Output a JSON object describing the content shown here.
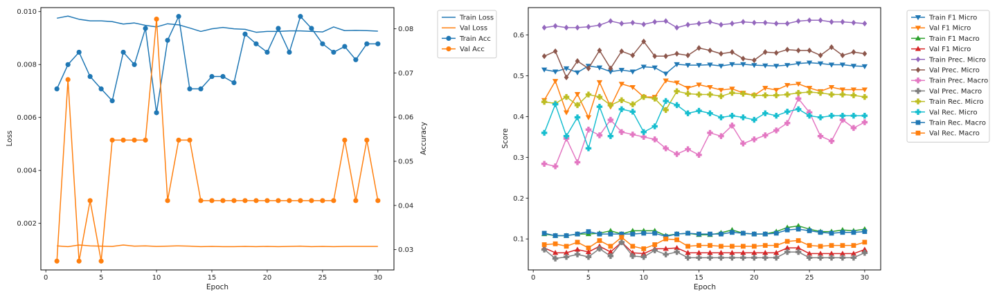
{
  "colors": {
    "c0": "#1f77b4",
    "c1": "#ff7f0e",
    "c2": "#2ca02c",
    "c3": "#d62728",
    "c4": "#9467bd",
    "c5": "#8c564b",
    "c6": "#e377c2",
    "c7": "#7f7f7f",
    "c8": "#bcbd22",
    "c9": "#17becf"
  },
  "chart_data": [
    {
      "type": "line",
      "x": [
        1,
        2,
        3,
        4,
        5,
        6,
        7,
        8,
        9,
        10,
        11,
        12,
        13,
        14,
        15,
        16,
        17,
        18,
        19,
        20,
        21,
        22,
        23,
        24,
        25,
        26,
        27,
        28,
        29,
        30
      ],
      "xlabel": "Epoch",
      "ylabel": "Loss",
      "y2label": "Accuracy",
      "xlim": [
        -0.45,
        31.45
      ],
      "ylim": [
        0.00024,
        0.01015
      ],
      "y2lim": [
        0.0254,
        0.0848
      ],
      "xticks": [
        "0",
        "5",
        "10",
        "15",
        "20",
        "25",
        "30"
      ],
      "yticks": [
        "0.002",
        "0.004",
        "0.006",
        "0.008",
        "0.010"
      ],
      "y2ticks": [
        "0.03",
        "0.04",
        "0.05",
        "0.06",
        "0.07",
        "0.08"
      ],
      "legend_position": "outside-top-right",
      "series": [
        {
          "name": "Train Loss",
          "axis": "left",
          "color": "#1f77b4",
          "marker": "none",
          "values": [
            0.00975,
            0.00983,
            0.00971,
            0.00965,
            0.00965,
            0.00962,
            0.00953,
            0.00957,
            0.00948,
            0.00942,
            0.00954,
            0.0095,
            0.00938,
            0.00925,
            0.00935,
            0.0094,
            0.00935,
            0.00933,
            0.00922,
            0.00925,
            0.00925,
            0.00927,
            0.00927,
            0.00925,
            0.00923,
            0.00942,
            0.00928,
            0.00929,
            0.00928,
            0.00926
          ]
        },
        {
          "name": "Val Loss",
          "axis": "left",
          "color": "#ff7f0e",
          "marker": "none",
          "values": [
            0.00115,
            0.00112,
            0.00118,
            0.00115,
            0.00114,
            0.00113,
            0.00118,
            0.00114,
            0.00115,
            0.00113,
            0.00114,
            0.00115,
            0.00114,
            0.00112,
            0.00113,
            0.00112,
            0.00112,
            0.00113,
            0.00112,
            0.00113,
            0.00112,
            0.00113,
            0.00114,
            0.00112,
            0.00113,
            0.00112,
            0.00113,
            0.00113,
            0.00113,
            0.00113
          ]
        },
        {
          "name": "Train Acc",
          "axis": "right",
          "color": "#1f77b4",
          "marker": "circle",
          "values": [
            0.0664,
            0.0719,
            0.0747,
            0.0692,
            0.0664,
            0.0637,
            0.0747,
            0.0719,
            0.0801,
            0.061,
            0.0774,
            0.0828,
            0.0664,
            0.0664,
            0.0692,
            0.0692,
            0.0678,
            0.0788,
            0.0766,
            0.0747,
            0.0801,
            0.0747,
            0.0828,
            0.0801,
            0.0766,
            0.0747,
            0.076,
            0.073,
            0.0766,
            0.0766
          ]
        },
        {
          "name": "Val Acc",
          "axis": "right",
          "color": "#ff7f0e",
          "marker": "circle",
          "values": [
            0.0274,
            0.0685,
            0.0274,
            0.0411,
            0.0274,
            0.0548,
            0.0548,
            0.0548,
            0.0548,
            0.0822,
            0.0411,
            0.0548,
            0.0548,
            0.0411,
            0.0411,
            0.0411,
            0.0411,
            0.0411,
            0.0411,
            0.0411,
            0.0411,
            0.0411,
            0.0411,
            0.0411,
            0.0411,
            0.0411,
            0.0548,
            0.0411,
            0.0548,
            0.0411
          ]
        }
      ]
    },
    {
      "type": "line",
      "x": [
        1,
        2,
        3,
        4,
        5,
        6,
        7,
        8,
        9,
        10,
        11,
        12,
        13,
        14,
        15,
        16,
        17,
        18,
        19,
        20,
        21,
        22,
        23,
        24,
        25,
        26,
        27,
        28,
        29,
        30
      ],
      "xlabel": "Epoch",
      "ylabel": "Score",
      "xlim": [
        -0.45,
        31.45
      ],
      "ylim": [
        0.024,
        0.667
      ],
      "xticks": [
        "0",
        "5",
        "10",
        "15",
        "20",
        "25",
        "30"
      ],
      "yticks": [
        "0.1",
        "0.2",
        "0.3",
        "0.4",
        "0.5",
        "0.6"
      ],
      "legend_position": "outside-top-right",
      "series": [
        {
          "name": "Train F1 Micro",
          "color": "#1f77b4",
          "marker": "tri-down",
          "values": [
            0.515,
            0.51,
            0.518,
            0.508,
            0.524,
            0.52,
            0.51,
            0.514,
            0.51,
            0.522,
            0.52,
            0.505,
            0.528,
            0.526,
            0.526,
            0.527,
            0.524,
            0.528,
            0.528,
            0.526,
            0.525,
            0.524,
            0.526,
            0.53,
            0.532,
            0.53,
            0.527,
            0.527,
            0.524,
            0.523
          ]
        },
        {
          "name": "Val F1 Micro",
          "color": "#ff7f0e",
          "marker": "tri-down",
          "values": [
            0.44,
            0.487,
            0.41,
            0.455,
            0.398,
            0.484,
            0.424,
            0.48,
            0.472,
            0.448,
            0.448,
            0.488,
            0.483,
            0.47,
            0.478,
            0.472,
            0.465,
            0.468,
            0.458,
            0.452,
            0.47,
            0.465,
            0.477,
            0.48,
            0.47,
            0.462,
            0.472,
            0.466,
            0.466,
            0.466
          ]
        },
        {
          "name": "Train F1 Macro",
          "color": "#2ca02c",
          "marker": "tri-up",
          "values": [
            0.112,
            0.108,
            0.108,
            0.112,
            0.112,
            0.114,
            0.12,
            0.112,
            0.12,
            0.12,
            0.12,
            0.108,
            0.112,
            0.114,
            0.11,
            0.11,
            0.115,
            0.122,
            0.114,
            0.112,
            0.112,
            0.118,
            0.128,
            0.132,
            0.124,
            0.118,
            0.118,
            0.122,
            0.12,
            0.124
          ]
        },
        {
          "name": "Val F1 Micro",
          "color": "#d62728",
          "marker": "tri-up",
          "values": [
            0.078,
            0.066,
            0.066,
            0.074,
            0.068,
            0.082,
            0.068,
            0.092,
            0.066,
            0.064,
            0.076,
            0.076,
            0.078,
            0.066,
            0.066,
            0.066,
            0.066,
            0.066,
            0.066,
            0.066,
            0.066,
            0.066,
            0.078,
            0.078,
            0.064,
            0.064,
            0.064,
            0.064,
            0.064,
            0.074
          ]
        },
        {
          "name": "Train Prec. Micro",
          "color": "#9467bd",
          "marker": "diamond",
          "values": [
            0.618,
            0.622,
            0.618,
            0.618,
            0.62,
            0.624,
            0.634,
            0.628,
            0.63,
            0.626,
            0.632,
            0.634,
            0.618,
            0.625,
            0.628,
            0.632,
            0.625,
            0.628,
            0.632,
            0.63,
            0.63,
            0.628,
            0.628,
            0.634,
            0.636,
            0.636,
            0.632,
            0.632,
            0.63,
            0.628
          ]
        },
        {
          "name": "Val Prec. Micro",
          "color": "#8c564b",
          "marker": "diamond",
          "values": [
            0.548,
            0.56,
            0.496,
            0.536,
            0.518,
            0.562,
            0.518,
            0.56,
            0.55,
            0.584,
            0.548,
            0.548,
            0.554,
            0.55,
            0.568,
            0.562,
            0.554,
            0.558,
            0.542,
            0.538,
            0.558,
            0.556,
            0.564,
            0.562,
            0.562,
            0.55,
            0.57,
            0.55,
            0.558,
            0.554
          ]
        },
        {
          "name": "Train Prec. Macro",
          "color": "#e377c2",
          "marker": "plus",
          "values": [
            0.284,
            0.278,
            0.346,
            0.288,
            0.368,
            0.354,
            0.392,
            0.362,
            0.356,
            0.35,
            0.344,
            0.322,
            0.308,
            0.32,
            0.306,
            0.36,
            0.352,
            0.378,
            0.334,
            0.344,
            0.354,
            0.366,
            0.384,
            0.444,
            0.41,
            0.352,
            0.34,
            0.392,
            0.372,
            0.386
          ]
        },
        {
          "name": "Val Prec. Macro",
          "color": "#7f7f7f",
          "marker": "plus",
          "values": [
            0.074,
            0.052,
            0.056,
            0.062,
            0.056,
            0.076,
            0.058,
            0.092,
            0.058,
            0.056,
            0.072,
            0.062,
            0.068,
            0.054,
            0.054,
            0.054,
            0.054,
            0.054,
            0.054,
            0.054,
            0.054,
            0.054,
            0.068,
            0.068,
            0.054,
            0.054,
            0.054,
            0.054,
            0.054,
            0.066
          ]
        },
        {
          "name": "Train Rec. Micro",
          "color": "#bcbd22",
          "marker": "plus",
          "values": [
            0.436,
            0.432,
            0.448,
            0.428,
            0.454,
            0.448,
            0.428,
            0.44,
            0.43,
            0.448,
            0.444,
            0.416,
            0.462,
            0.456,
            0.454,
            0.454,
            0.45,
            0.458,
            0.456,
            0.452,
            0.452,
            0.452,
            0.454,
            0.458,
            0.46,
            0.458,
            0.454,
            0.454,
            0.452,
            0.448
          ]
        },
        {
          "name": "Val Rec. Micro",
          "color": "#17becf",
          "marker": "plus",
          "values": [
            0.36,
            0.43,
            0.352,
            0.398,
            0.322,
            0.424,
            0.352,
            0.418,
            0.412,
            0.362,
            0.376,
            0.438,
            0.428,
            0.408,
            0.414,
            0.408,
            0.398,
            0.402,
            0.398,
            0.392,
            0.408,
            0.402,
            0.412,
            0.418,
            0.402,
            0.398,
            0.402,
            0.402,
            0.402,
            0.402
          ]
        },
        {
          "name": "Train Rec. Macro",
          "color": "#1f77b4",
          "marker": "square",
          "values": [
            0.114,
            0.108,
            0.108,
            0.112,
            0.118,
            0.112,
            0.112,
            0.112,
            0.112,
            0.114,
            0.114,
            0.106,
            0.112,
            0.114,
            0.112,
            0.112,
            0.112,
            0.116,
            0.114,
            0.112,
            0.112,
            0.114,
            0.122,
            0.124,
            0.12,
            0.116,
            0.114,
            0.116,
            0.116,
            0.118
          ]
        },
        {
          "name": "Val Rec. Macro",
          "color": "#ff7f0e",
          "marker": "square",
          "values": [
            0.086,
            0.088,
            0.082,
            0.092,
            0.078,
            0.096,
            0.082,
            0.104,
            0.082,
            0.076,
            0.086,
            0.1,
            0.098,
            0.082,
            0.084,
            0.084,
            0.082,
            0.082,
            0.082,
            0.082,
            0.084,
            0.084,
            0.094,
            0.096,
            0.084,
            0.082,
            0.084,
            0.084,
            0.084,
            0.092
          ]
        }
      ]
    }
  ]
}
